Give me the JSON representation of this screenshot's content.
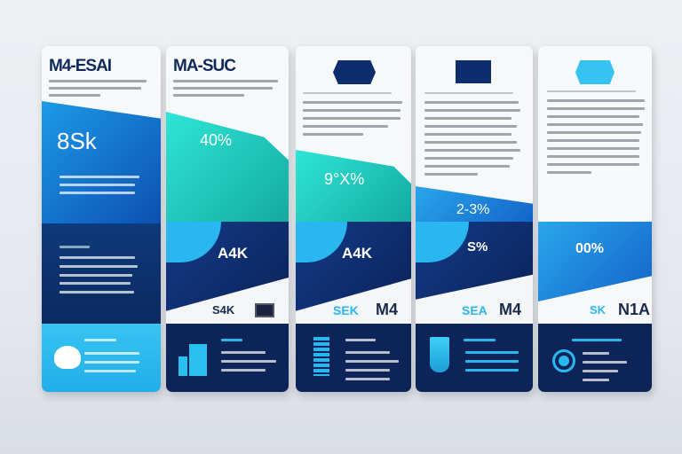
{
  "cards": [
    {
      "title": "M4-ESAI",
      "stat": "8Sk"
    },
    {
      "title": "MA-SUC",
      "stat": "40%",
      "stat2": "A4K",
      "label_left": "S4K"
    },
    {
      "stat": "9°X%",
      "stat2": "A4K",
      "label_left": "SEK",
      "label_right": "M4"
    },
    {
      "stat": "2-3%",
      "stat2": "S%",
      "label_left": "SEA",
      "label_right": "M4"
    },
    {
      "stat": "00%",
      "label_left": "SK",
      "label_right": "N1A"
    }
  ],
  "colors": {
    "navy": "#0c2457",
    "blue": "#1a7fd6",
    "teal": "#22d3c5",
    "cyan": "#2ec4f0"
  }
}
